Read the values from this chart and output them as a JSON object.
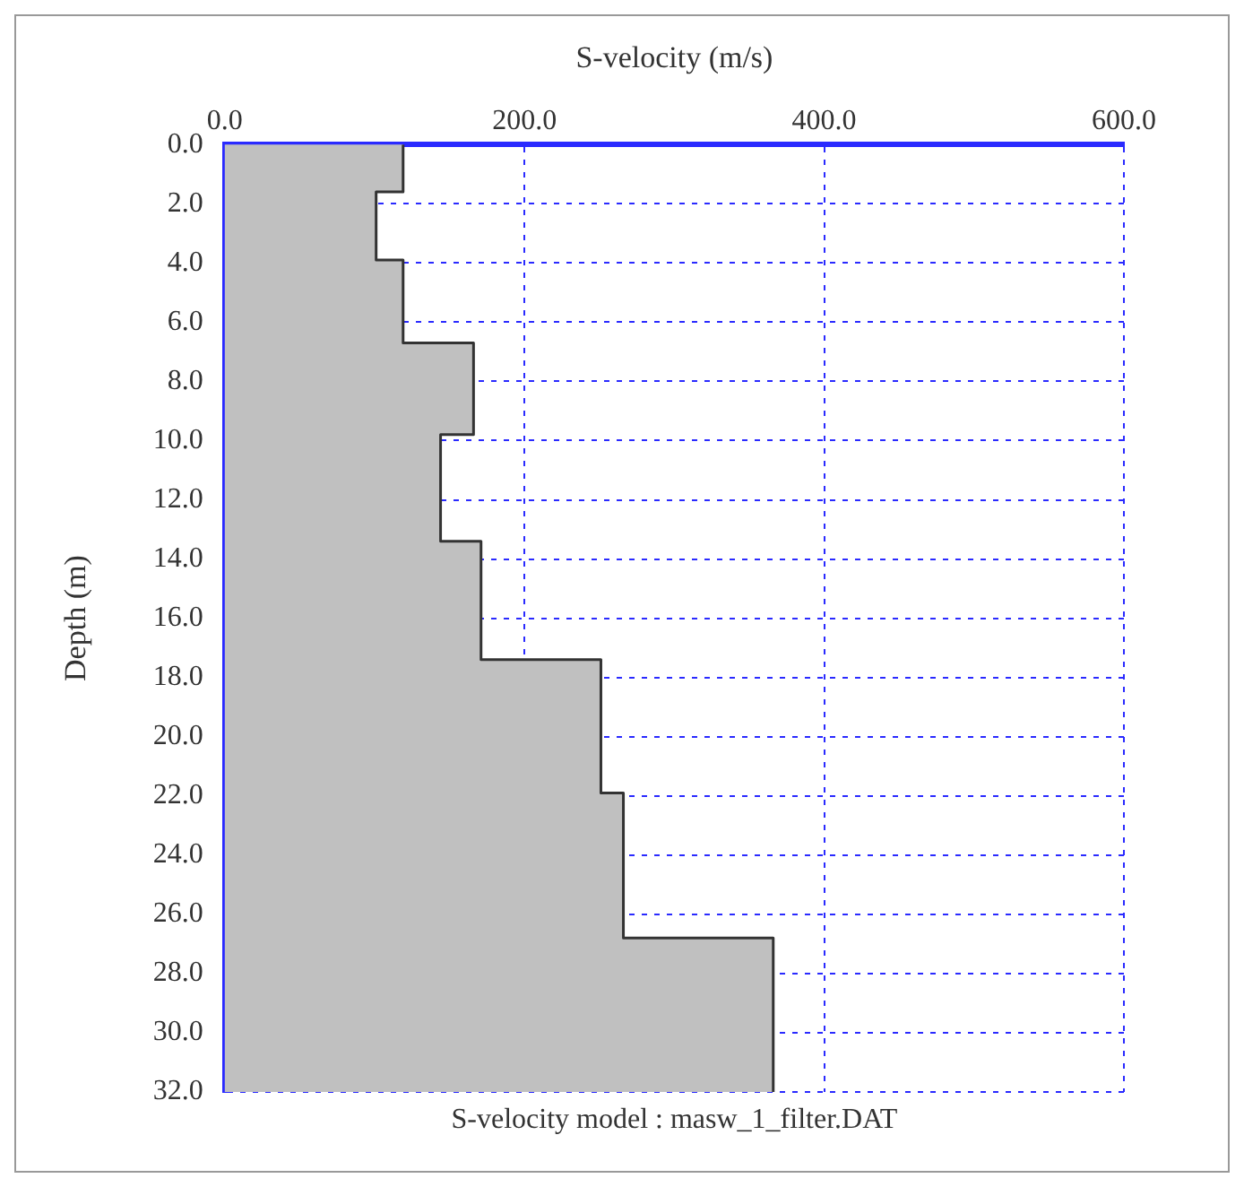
{
  "chart_data": {
    "type": "area",
    "orientation": "horizontal",
    "xlabel": "S-velocity (m/s)",
    "ylabel": "Depth (m)",
    "annotations": [
      "S-velocity model : masw_1_filter.DAT"
    ],
    "series": [
      {
        "color": "#c0c0c0",
        "x": [
          0,
          1.6,
          3.9,
          6.7,
          9.8,
          13.4,
          17.4,
          21.9,
          26.8,
          32
        ],
        "values": [
          119,
          101,
          119,
          166,
          144,
          171,
          251,
          266,
          366,
          366
        ]
      },
      {
        "type": "step",
        "color": "#333333",
        "x": [
          0,
          1.6,
          3.9,
          6.7,
          9.8,
          13.4,
          17.4,
          21.9,
          26.8,
          32
        ],
        "values": [
          119,
          101,
          119,
          166,
          144,
          171,
          251,
          266,
          366,
          366
        ]
      }
    ],
    "xlim": [
      0,
      600
    ],
    "xticks": [
      {
        "value": 0,
        "label": "0.0"
      },
      {
        "value": 200,
        "label": "200.0"
      },
      {
        "value": 400,
        "label": "400.0"
      },
      {
        "value": 600,
        "label": "600.0"
      }
    ],
    "ylim": [
      32,
      0
    ],
    "yticks": [
      {
        "value": 0,
        "label": "0.0"
      },
      {
        "value": 2,
        "label": "2.0"
      },
      {
        "value": 4,
        "label": "4.0"
      },
      {
        "value": 6,
        "label": "6.0"
      },
      {
        "value": 8,
        "label": "8.0"
      },
      {
        "value": 10,
        "label": "10.0"
      },
      {
        "value": 12,
        "label": "12.0"
      },
      {
        "value": 14,
        "label": "14.0"
      },
      {
        "value": 16,
        "label": "16.0"
      },
      {
        "value": 18,
        "label": "18.0"
      },
      {
        "value": 20,
        "label": "20.0"
      },
      {
        "value": 22,
        "label": "22.0"
      },
      {
        "value": 24,
        "label": "24.0"
      },
      {
        "value": 26,
        "label": "26.0"
      },
      {
        "value": 28,
        "label": "28.0"
      },
      {
        "value": 30,
        "label": "30.0"
      },
      {
        "value": 32,
        "label": "32.0"
      }
    ],
    "grid": true,
    "marker": "none",
    "line_style": "solid",
    "legend": false
  }
}
